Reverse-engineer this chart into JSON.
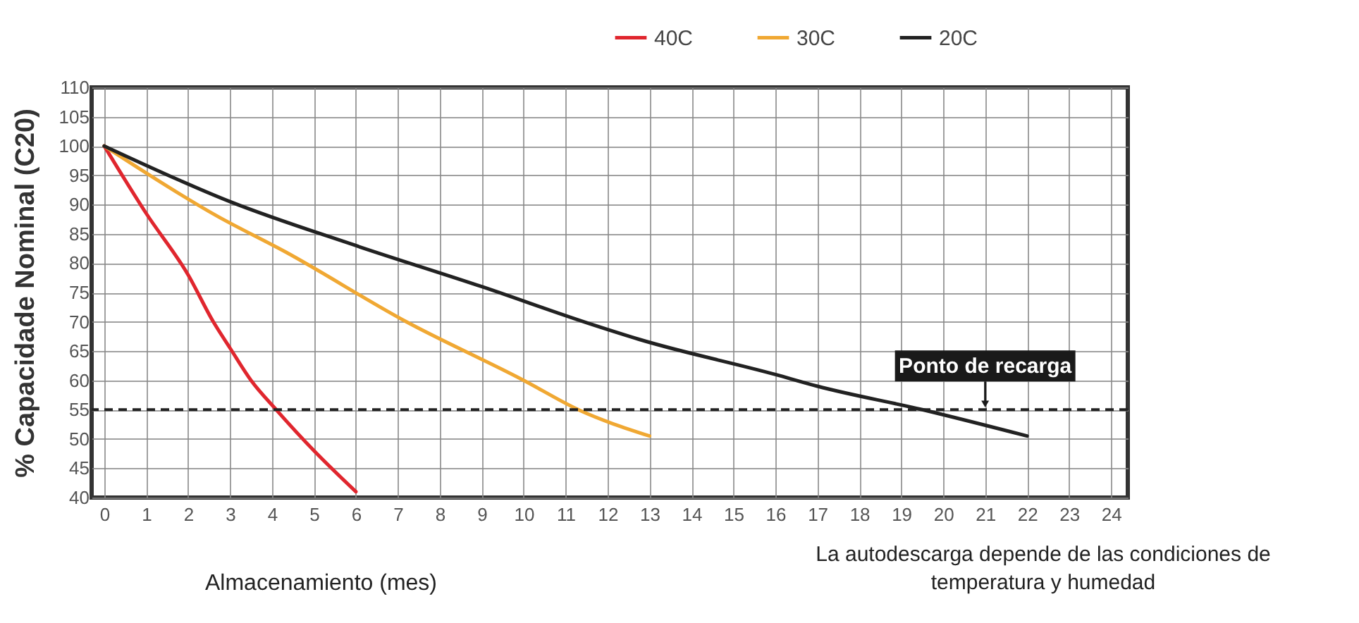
{
  "chart_data": {
    "type": "line",
    "ylabel": "% Capacidade Nominal (C20)",
    "xlabel": "Almacenamiento (mes)",
    "xlim": [
      -0.3,
      24.4
    ],
    "xticks": [
      0,
      1,
      2,
      3,
      4,
      5,
      6,
      7,
      8,
      9,
      10,
      11,
      12,
      13,
      14,
      15,
      16,
      17,
      18,
      19,
      20,
      21,
      22,
      23,
      24
    ],
    "ylim": [
      40,
      110
    ],
    "yticks": [
      40,
      45,
      50,
      55,
      60,
      65,
      70,
      75,
      80,
      85,
      90,
      95,
      100,
      105,
      110
    ],
    "grid": true,
    "legend": "top right",
    "line_style": "solid",
    "marker": "none",
    "series": [
      {
        "name": "40C",
        "color": "#e0262e",
        "x": [
          0,
          1,
          2,
          2.6,
          3,
          3.5,
          4.1,
          5,
          6
        ],
        "values": [
          100,
          88.5,
          78,
          70,
          65.5,
          60,
          55,
          48,
          41
        ]
      },
      {
        "name": "30C",
        "color": "#f0a833",
        "x": [
          0,
          2.7,
          4.3,
          7.2,
          10,
          11.3,
          13
        ],
        "values": [
          100,
          88,
          82,
          70,
          60,
          55,
          50.5
        ]
      },
      {
        "name": "20C",
        "color": "#222222",
        "x": [
          0,
          3,
          6,
          9,
          11.6,
          12.75,
          16,
          17,
          19.5,
          22
        ],
        "values": [
          100,
          90.5,
          83,
          76,
          69.6,
          67,
          61,
          59,
          55,
          50.5
        ]
      }
    ],
    "ref_lines": [
      {
        "axis": "y",
        "value": 55,
        "line_style": "dashed",
        "color": "#222222"
      }
    ],
    "annotations": [
      {
        "text": "Ponto de recarga",
        "x": 21,
        "y": 55
      },
      "La autodescarga depende de las condiciones de temperatura y humedad"
    ]
  }
}
